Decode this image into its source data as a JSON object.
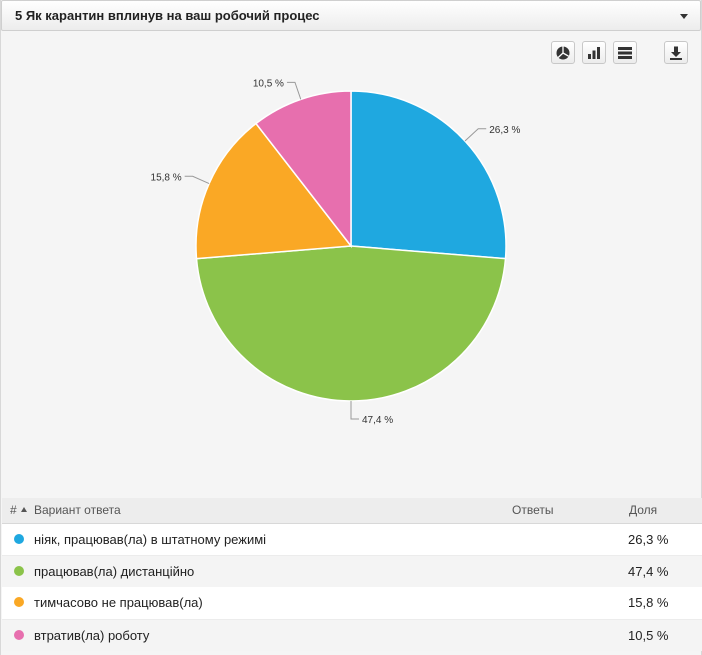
{
  "header": {
    "title": "5 Як карантин вплинув на ваш робочий процес"
  },
  "toolbar": {
    "icons": [
      "pie-chart-icon",
      "bar-chart-icon",
      "table-view-icon",
      "download-icon"
    ]
  },
  "table": {
    "col_num": "#",
    "col_option": "Вариант ответа",
    "col_answers": "Ответы",
    "col_share": "Доля",
    "rows": [
      {
        "label": "ніяк, працював(ла) в штатному режимі",
        "answers": "",
        "share": "26,3 %",
        "color": "#1fa8e0"
      },
      {
        "label": "працював(ла) дистанційно",
        "answers": "",
        "share": "47,4 %",
        "color": "#8bc34a"
      },
      {
        "label": "тимчасово не працював(ла)",
        "answers": "",
        "share": "15,8 %",
        "color": "#faa825"
      },
      {
        "label": "втратив(ла) роботу",
        "answers": "",
        "share": "10,5 %",
        "color": "#e76fae"
      }
    ]
  },
  "chart_data": {
    "type": "pie",
    "categories": [
      "ніяк, працював(ла) в штатному режимі",
      "працював(ла) дистанційно",
      "тимчасово не працював(ла)",
      "втратив(ла) роботу"
    ],
    "values": [
      26.3,
      47.4,
      15.8,
      10.5
    ],
    "labels": [
      "26,3 %",
      "47,4 %",
      "15,8 %",
      "10,5 %"
    ],
    "colors": [
      "#1fa8e0",
      "#8bc34a",
      "#faa825",
      "#e76fae"
    ],
    "title": "",
    "start_angle": "12 o'clock",
    "direction": "clockwise"
  }
}
